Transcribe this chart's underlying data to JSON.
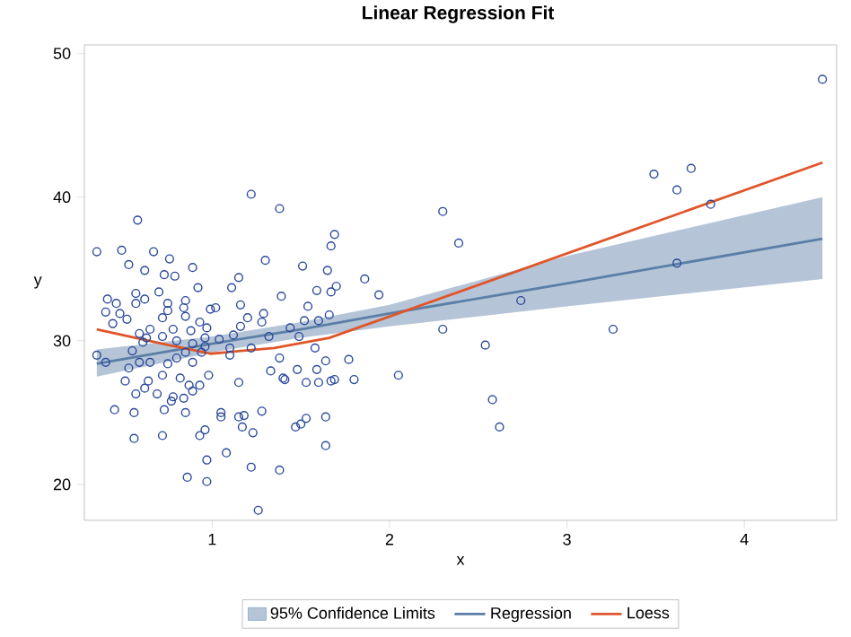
{
  "chart_data": {
    "type": "scatter",
    "title": "Linear Regression Fit",
    "xlabel": "x",
    "ylabel": "y",
    "xlim": [
      0.28,
      4.52
    ],
    "ylim": [
      17.5,
      50.6
    ],
    "xticks": [
      1,
      2,
      3,
      4
    ],
    "yticks": [
      20,
      30,
      40,
      50
    ],
    "grid": false,
    "legend": "bottom",
    "annotations": [
      "95% Confidence Limits"
    ],
    "series": [
      {
        "type": "scatter",
        "color": "#2b4a9b",
        "marker": "circle",
        "x": [
          0.35,
          0.49,
          0.67,
          0.76,
          0.53,
          0.62,
          0.58,
          1.22,
          1.38,
          1.69,
          1.67,
          1.3,
          1.51,
          0.89,
          0.73,
          0.79,
          0.57,
          0.7,
          0.62,
          0.41,
          0.46,
          0.4,
          0.44,
          0.52,
          0.48,
          0.57,
          0.75,
          0.85,
          0.92,
          0.84,
          0.75,
          0.72,
          0.85,
          0.93,
          0.99,
          1.02,
          0.97,
          0.88,
          0.78,
          0.65,
          0.59,
          0.72,
          0.63,
          0.61,
          0.8,
          0.89,
          0.96,
          1.04,
          1.12,
          1.1,
          1.16,
          1.2,
          1.29,
          1.28,
          1.39,
          1.44,
          1.49,
          1.54,
          1.59,
          1.65,
          1.67,
          1.7,
          1.86,
          1.94,
          1.52,
          1.6,
          1.66,
          1.15,
          1.11,
          1.16,
          1.22,
          1.32,
          1.58,
          0.35,
          0.4,
          0.55,
          0.59,
          0.65,
          0.53,
          0.75,
          0.8,
          0.85,
          0.89,
          0.94,
          0.96,
          1.1,
          1.38,
          1.77,
          1.64,
          1.48,
          1.59,
          0.51,
          0.64,
          0.57,
          0.62,
          0.69,
          0.72,
          0.82,
          0.87,
          0.93,
          0.98,
          0.78,
          0.84,
          0.77,
          0.89,
          1.15,
          1.33,
          1.4,
          1.41,
          1.53,
          1.6,
          1.67,
          1.69,
          1.8,
          2.05,
          0.45,
          0.56,
          0.73,
          0.85,
          1.05,
          1.05,
          1.15,
          1.18,
          1.28,
          0.93,
          0.96,
          0.56,
          0.72,
          1.17,
          1.23,
          1.47,
          1.5,
          1.53,
          1.64,
          1.64,
          1.08,
          0.97,
          1.22,
          1.38,
          0.86,
          0.97,
          1.26,
          2.3,
          2.39,
          2.3,
          2.54,
          2.58,
          2.62,
          2.74,
          3.26,
          3.49,
          3.62,
          3.7,
          3.81,
          3.62,
          4.44
        ],
        "values": [
          36.2,
          36.3,
          36.2,
          35.7,
          35.3,
          34.9,
          38.4,
          40.2,
          39.2,
          37.4,
          36.6,
          35.6,
          35.2,
          35.1,
          34.6,
          34.5,
          33.3,
          33.4,
          32.9,
          32.9,
          32.6,
          32.0,
          31.2,
          31.5,
          31.9,
          32.6,
          32.6,
          32.8,
          33.7,
          32.3,
          32.1,
          31.6,
          31.7,
          31.3,
          32.2,
          32.3,
          30.9,
          30.7,
          30.8,
          30.8,
          30.5,
          30.3,
          30.2,
          29.9,
          30.0,
          29.8,
          30.2,
          30.1,
          30.4,
          29.5,
          31.0,
          31.6,
          31.9,
          31.3,
          33.1,
          30.9,
          30.3,
          32.4,
          33.5,
          34.9,
          33.4,
          33.8,
          34.3,
          33.2,
          31.4,
          31.4,
          31.8,
          34.4,
          33.7,
          32.5,
          29.5,
          30.3,
          29.5,
          29.0,
          28.5,
          29.3,
          28.5,
          28.5,
          28.1,
          28.4,
          28.8,
          29.2,
          28.5,
          29.2,
          29.6,
          29.0,
          28.8,
          28.7,
          28.6,
          28.0,
          28.0,
          27.2,
          27.2,
          26.3,
          26.7,
          26.3,
          27.6,
          27.4,
          26.9,
          26.9,
          27.6,
          26.1,
          26.0,
          25.8,
          26.5,
          27.1,
          27.9,
          27.4,
          27.3,
          27.1,
          27.1,
          27.2,
          27.3,
          27.3,
          27.6,
          25.2,
          25.0,
          25.2,
          25.0,
          25.0,
          24.7,
          24.7,
          24.8,
          25.1,
          23.4,
          23.8,
          23.2,
          23.4,
          24.0,
          23.6,
          24.0,
          24.2,
          24.6,
          24.7,
          22.7,
          22.2,
          21.7,
          21.2,
          21.0,
          20.5,
          20.2,
          18.2,
          39.0,
          36.8,
          30.8,
          29.7,
          25.9,
          24.0,
          32.8,
          30.8,
          41.6,
          40.5,
          42.0,
          39.5,
          35.4,
          48.2
        ]
      },
      {
        "type": "line",
        "name": "Regression",
        "color": "#5b7ea6",
        "line_style": "solid",
        "x": [
          0.35,
          1.0,
          1.5,
          2.0,
          3.0,
          4.44
        ],
        "values": [
          28.4,
          29.8,
          30.8,
          31.9,
          34.0,
          37.1
        ],
        "lower": [
          27.5,
          29.2,
          30.2,
          31.0,
          32.4,
          34.3
        ],
        "upper": [
          29.4,
          30.3,
          31.3,
          32.5,
          35.9,
          40.0
        ]
      },
      {
        "type": "line",
        "name": "Loess",
        "color": "#e0552a",
        "line_style": "solid",
        "x": [
          0.35,
          0.72,
          0.99,
          1.35,
          1.66,
          4.44
        ],
        "values": [
          30.8,
          29.8,
          29.1,
          29.5,
          30.2,
          42.4
        ]
      }
    ]
  }
}
